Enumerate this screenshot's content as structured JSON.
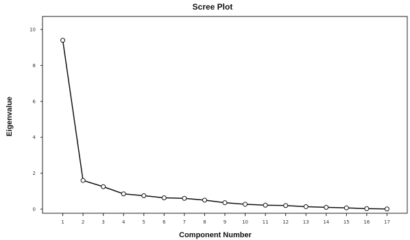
{
  "chart_data": {
    "type": "line",
    "title": "Scree Plot",
    "xlabel": "Component Number",
    "ylabel": "Eigenvalue",
    "x": [
      1,
      2,
      3,
      4,
      5,
      6,
      7,
      8,
      9,
      10,
      11,
      12,
      13,
      14,
      15,
      16,
      17
    ],
    "x_tick_labels": [
      "1",
      "2",
      "3",
      "4",
      "5",
      "6",
      "7",
      "8",
      "9",
      "10",
      "11",
      "12",
      "13",
      "14",
      "15",
      "16",
      "17"
    ],
    "series": [
      {
        "values": [
          9.4,
          1.6,
          1.25,
          0.85,
          0.75,
          0.63,
          0.6,
          0.5,
          0.36,
          0.27,
          0.22,
          0.2,
          0.14,
          0.1,
          0.07,
          0.03,
          0.01
        ]
      }
    ],
    "ylim": [
      0,
      10
    ],
    "y_ticks": [
      0,
      2,
      4,
      6,
      8,
      10
    ],
    "xlim": [
      0,
      18
    ],
    "grid": false,
    "marker": "open-circle",
    "line_color": "#111111"
  }
}
